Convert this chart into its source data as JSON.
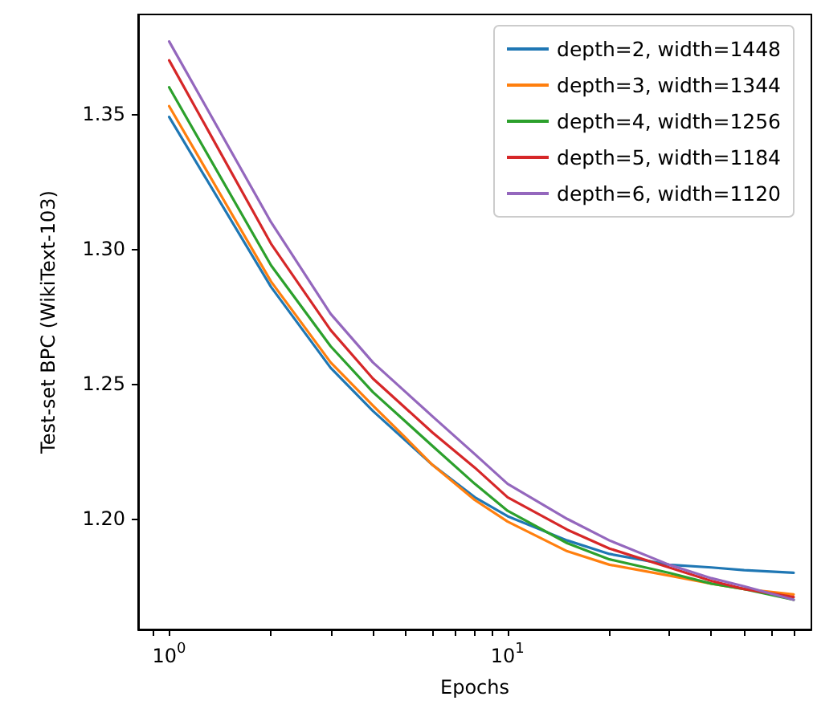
{
  "chart_data": {
    "type": "line",
    "xlabel": "Epochs",
    "ylabel": "Test-set BPC (WikiText-103)",
    "log": "x",
    "grid": false,
    "legend": "top right",
    "marker": "none",
    "line_style": "solid",
    "x": [
      1,
      2,
      3,
      4,
      5,
      6,
      8,
      10,
      15,
      20,
      30,
      40,
      50,
      70
    ],
    "series": [
      {
        "name": "depth=2, width=1448",
        "color": "#1f77b4",
        "values": [
          1.349,
          1.286,
          1.256,
          1.24,
          1.229,
          1.22,
          1.208,
          1.201,
          1.192,
          1.187,
          1.183,
          1.182,
          1.181,
          1.18
        ]
      },
      {
        "name": "depth=3, width=1344",
        "color": "#ff7f0e",
        "values": [
          1.353,
          1.288,
          1.258,
          1.242,
          1.23,
          1.22,
          1.207,
          1.199,
          1.188,
          1.183,
          1.179,
          1.176,
          1.174,
          1.172
        ]
      },
      {
        "name": "depth=4, width=1256",
        "color": "#2ca02c",
        "values": [
          1.36,
          1.294,
          1.264,
          1.247,
          1.236,
          1.227,
          1.213,
          1.203,
          1.191,
          1.185,
          1.18,
          1.176,
          1.174,
          1.17
        ]
      },
      {
        "name": "depth=5, width=1184",
        "color": "#d62728",
        "values": [
          1.37,
          1.302,
          1.27,
          1.252,
          1.241,
          1.232,
          1.219,
          1.208,
          1.196,
          1.189,
          1.182,
          1.177,
          1.174,
          1.171
        ]
      },
      {
        "name": "depth=6, width=1120",
        "color": "#9467bd",
        "values": [
          1.377,
          1.31,
          1.276,
          1.258,
          1.247,
          1.238,
          1.224,
          1.213,
          1.2,
          1.192,
          1.183,
          1.178,
          1.175,
          1.17
        ]
      }
    ],
    "xlim": [
      0.81,
      79
    ],
    "ylim": [
      1.159,
      1.387
    ],
    "xticks": [
      {
        "value": 0.9,
        "label": null
      },
      {
        "value": 1,
        "label": "10$^{0}$"
      },
      {
        "value": 2,
        "label": null
      },
      {
        "value": 3,
        "label": null
      },
      {
        "value": 4,
        "label": null
      },
      {
        "value": 5,
        "label": null
      },
      {
        "value": 6,
        "label": null
      },
      {
        "value": 7,
        "label": null
      },
      {
        "value": 8,
        "label": null
      },
      {
        "value": 9,
        "label": null
      },
      {
        "value": 10,
        "label": "10$^{1}$"
      },
      {
        "value": 20,
        "label": null
      },
      {
        "value": 30,
        "label": null
      },
      {
        "value": 40,
        "label": null
      },
      {
        "value": 50,
        "label": null
      },
      {
        "value": 60,
        "label": null
      },
      {
        "value": 70,
        "label": null
      }
    ],
    "yticks": [
      {
        "value": 1.2,
        "label": "1.20"
      },
      {
        "value": 1.25,
        "label": "1.25"
      },
      {
        "value": 1.3,
        "label": "1.30"
      },
      {
        "value": 1.35,
        "label": "1.35"
      }
    ]
  }
}
